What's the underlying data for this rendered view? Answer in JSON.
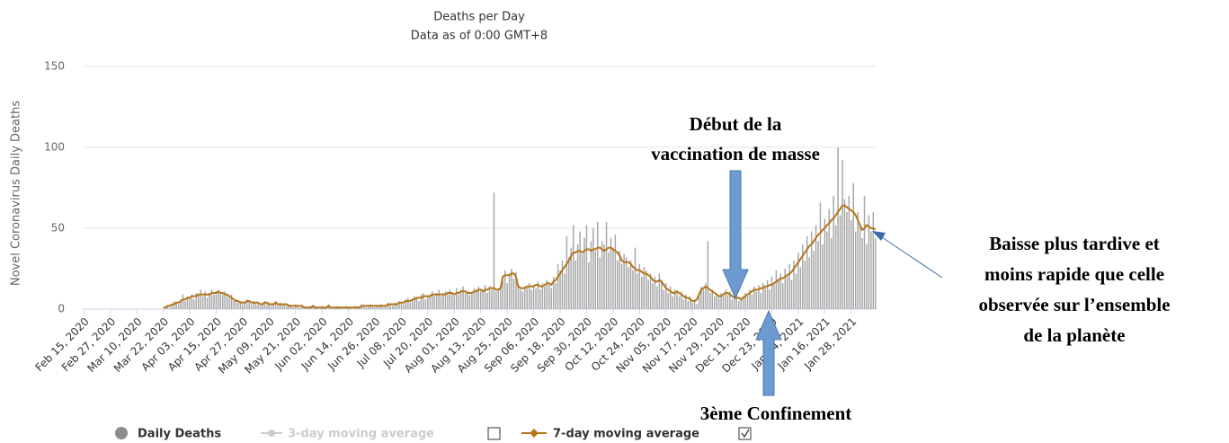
{
  "chart_data": {
    "type": "bar_line",
    "title": "Deaths per Day",
    "subtitle": "Data as of 0:00 GMT+8",
    "y_label": "Novel Coronavirus Daily Deaths",
    "ylim": [
      0,
      150
    ],
    "yticks": [
      0,
      50,
      100,
      150
    ],
    "grid": true,
    "categories": [
      "Feb 15, 2020",
      null,
      null,
      null,
      null,
      null,
      null,
      null,
      null,
      null,
      null,
      null,
      "Feb 27, 2020",
      null,
      null,
      null,
      null,
      null,
      null,
      null,
      null,
      null,
      null,
      null,
      "Mar 10, 2020",
      null,
      null,
      null,
      null,
      null,
      null,
      null,
      null,
      null,
      null,
      null,
      "Mar 22, 2020",
      null,
      null,
      null,
      null,
      null,
      null,
      null,
      null,
      null,
      null,
      null,
      "Apr 03, 2020",
      null,
      null,
      null,
      null,
      null,
      null,
      null,
      null,
      null,
      null,
      null,
      "Apr 15, 2020",
      null,
      null,
      null,
      null,
      null,
      null,
      null,
      null,
      null,
      null,
      null,
      "Apr 27, 2020",
      null,
      null,
      null,
      null,
      null,
      null,
      null,
      null,
      null,
      null,
      null,
      "May 09, 2020",
      null,
      null,
      null,
      null,
      null,
      null,
      null,
      null,
      null,
      null,
      null,
      "May 21, 2020",
      null,
      null,
      null,
      null,
      null,
      null,
      null,
      null,
      null,
      null,
      null,
      "Jun 02, 2020",
      null,
      null,
      null,
      null,
      null,
      null,
      null,
      null,
      null,
      null,
      null,
      "Jun 14, 2020",
      null,
      null,
      null,
      null,
      null,
      null,
      null,
      null,
      null,
      null,
      null,
      "Jun 26, 2020",
      null,
      null,
      null,
      null,
      null,
      null,
      null,
      null,
      null,
      null,
      null,
      "Jul 08, 2020",
      null,
      null,
      null,
      null,
      null,
      null,
      null,
      null,
      null,
      null,
      null,
      "Jul 20, 2020",
      null,
      null,
      null,
      null,
      null,
      null,
      null,
      null,
      null,
      null,
      null,
      "Aug 01, 2020",
      null,
      null,
      null,
      null,
      null,
      null,
      null,
      null,
      null,
      null,
      null,
      "Aug 13, 2020",
      null,
      null,
      null,
      null,
      null,
      null,
      null,
      null,
      null,
      null,
      null,
      "Aug 25, 2020",
      null,
      null,
      null,
      null,
      null,
      null,
      null,
      null,
      null,
      null,
      null,
      "Sep 06, 2020",
      null,
      null,
      null,
      null,
      null,
      null,
      null,
      null,
      null,
      null,
      null,
      "Sep 18, 2020",
      null,
      null,
      null,
      null,
      null,
      null,
      null,
      null,
      null,
      null,
      null,
      "Sep 30, 2020",
      null,
      null,
      null,
      null,
      null,
      null,
      null,
      null,
      null,
      null,
      null,
      "Oct 12, 2020",
      null,
      null,
      null,
      null,
      null,
      null,
      null,
      null,
      null,
      null,
      null,
      "Oct 24, 2020",
      null,
      null,
      null,
      null,
      null,
      null,
      null,
      null,
      null,
      null,
      null,
      "Nov 05, 2020",
      null,
      null,
      null,
      null,
      null,
      null,
      null,
      null,
      null,
      null,
      null,
      "Nov 17, 2020",
      null,
      null,
      null,
      null,
      null,
      null,
      null,
      null,
      null,
      null,
      null,
      "Nov 29, 2020",
      null,
      null,
      null,
      null,
      null,
      null,
      null,
      null,
      null,
      null,
      null,
      "Dec 11, 2020",
      null,
      null,
      null,
      null,
      null,
      null,
      null,
      null,
      null,
      null,
      null,
      "Dec 23, 2020",
      null,
      null,
      null,
      null,
      null,
      null,
      null,
      null,
      null,
      null,
      null,
      "Jan 04, 2021",
      null,
      null,
      null,
      null,
      null,
      null,
      null,
      null,
      null,
      null,
      null,
      "Jan 16, 2021",
      null,
      null,
      null,
      null,
      null,
      null,
      null,
      null,
      null,
      null,
      null,
      "Jan 28, 2021",
      null,
      null,
      null,
      null,
      null,
      null,
      null,
      null,
      null,
      null,
      null
    ],
    "series": [
      {
        "name": "Daily Deaths",
        "kind": "bar",
        "color": "#a6a6a6",
        "legend_color": "#8c8c8c",
        "values": [
          0,
          0,
          0,
          0,
          0,
          0,
          0,
          0,
          0,
          0,
          0,
          0,
          0,
          0,
          0,
          0,
          0,
          0,
          0,
          0,
          0,
          0,
          0,
          0,
          0,
          0,
          0,
          0,
          0,
          0,
          0,
          0,
          0,
          0,
          0,
          0,
          0,
          1,
          2,
          1,
          3,
          5,
          4,
          3,
          6,
          9,
          5,
          8,
          7,
          9,
          6,
          10,
          9,
          12,
          8,
          11,
          7,
          10,
          12,
          9,
          11,
          12,
          10,
          9,
          11,
          8,
          7,
          9,
          5,
          6,
          4,
          5,
          3,
          4,
          6,
          5,
          3,
          5,
          4,
          3,
          2,
          4,
          5,
          3,
          4,
          2,
          3,
          5,
          2,
          4,
          3,
          3,
          2,
          3,
          2,
          1,
          3,
          2,
          1,
          2,
          1,
          0,
          1,
          2,
          2,
          1,
          1,
          0,
          2,
          1,
          1,
          3,
          1,
          0,
          1,
          2,
          1,
          1,
          0,
          2,
          1,
          1,
          0,
          2,
          1,
          1,
          3,
          2,
          1,
          2,
          3,
          2,
          1,
          2,
          2,
          3,
          1,
          2,
          4,
          3,
          2,
          4,
          3,
          5,
          4,
          3,
          6,
          7,
          4,
          6,
          8,
          7,
          5,
          9,
          10,
          6,
          8,
          9,
          11,
          8,
          10,
          12,
          8,
          10,
          11,
          9,
          12,
          10,
          8,
          13,
          9,
          12,
          14,
          10,
          11,
          9,
          10,
          13,
          12,
          14,
          11,
          12,
          15,
          10,
          14,
          12,
          72,
          11,
          13,
          14,
          18,
          24,
          16,
          22,
          25,
          19,
          23,
          15,
          12,
          11,
          14,
          13,
          16,
          12,
          15,
          13,
          17,
          12,
          16,
          14,
          18,
          15,
          13,
          20,
          16,
          28,
          24,
          30,
          22,
          45,
          32,
          38,
          52,
          30,
          40,
          48,
          34,
          44,
          52,
          29,
          42,
          50,
          36,
          54,
          32,
          42,
          40,
          54,
          35,
          44,
          38,
          46,
          30,
          36,
          28,
          34,
          32,
          26,
          30,
          24,
          38,
          22,
          28,
          20,
          26,
          24,
          18,
          22,
          16,
          20,
          14,
          22,
          18,
          12,
          16,
          10,
          14,
          8,
          12,
          10,
          8,
          11,
          6,
          9,
          5,
          8,
          4,
          6,
          3,
          10,
          14,
          12,
          16,
          42,
          10,
          12,
          8,
          9,
          7,
          10,
          8,
          12,
          9,
          11,
          6,
          8,
          9,
          5,
          7,
          8,
          10,
          8,
          12,
          9,
          14,
          11,
          15,
          10,
          16,
          13,
          18,
          12,
          20,
          15,
          24,
          18,
          22,
          16,
          25,
          20,
          28,
          18,
          30,
          22,
          35,
          26,
          40,
          30,
          45,
          32,
          48,
          36,
          52,
          42,
          66,
          40,
          56,
          48,
          62,
          44,
          70,
          52,
          100,
          58,
          92,
          68,
          60,
          70,
          55,
          78,
          48,
          60,
          52,
          44,
          70,
          40,
          58,
          48,
          60,
          44
        ]
      },
      {
        "name": "7-day moving average",
        "kind": "line",
        "color": "#b5761b",
        "values": [
          null,
          null,
          null,
          null,
          null,
          null,
          null,
          null,
          null,
          null,
          null,
          null,
          null,
          null,
          null,
          null,
          null,
          null,
          null,
          null,
          null,
          null,
          null,
          null,
          null,
          null,
          null,
          null,
          null,
          null,
          null,
          null,
          null,
          null,
          null,
          null,
          1,
          1,
          2,
          2,
          3,
          3,
          4,
          4,
          5,
          6,
          6,
          7,
          7,
          8,
          8,
          8,
          9,
          9,
          9,
          9,
          9,
          9,
          10,
          10,
          10,
          11,
          10,
          10,
          9,
          9,
          8,
          7,
          6,
          5,
          5,
          4,
          4,
          4,
          5,
          5,
          4,
          4,
          4,
          4,
          3,
          3,
          4,
          4,
          3,
          3,
          3,
          4,
          3,
          3,
          3,
          3,
          3,
          2,
          2,
          2,
          2,
          2,
          2,
          2,
          1,
          1,
          1,
          1,
          2,
          1,
          1,
          1,
          1,
          1,
          1,
          2,
          1,
          1,
          1,
          1,
          1,
          1,
          1,
          1,
          1,
          1,
          1,
          1,
          1,
          1,
          2,
          2,
          2,
          2,
          2,
          2,
          2,
          2,
          2,
          2,
          2,
          2,
          3,
          3,
          3,
          3,
          3,
          4,
          4,
          4,
          5,
          5,
          5,
          6,
          6,
          7,
          7,
          7,
          8,
          8,
          8,
          8,
          9,
          9,
          9,
          9,
          9,
          9,
          9,
          10,
          10,
          10,
          9,
          10,
          10,
          11,
          11,
          11,
          10,
          10,
          10,
          11,
          11,
          12,
          12,
          11,
          12,
          12,
          13,
          13,
          13,
          12,
          12,
          13,
          20,
          21,
          21,
          21,
          22,
          22,
          20,
          14,
          13,
          13,
          13,
          14,
          14,
          14,
          14,
          15,
          15,
          14,
          14,
          15,
          16,
          16,
          15,
          17,
          18,
          20,
          22,
          24,
          26,
          28,
          30,
          33,
          35,
          35,
          36,
          36,
          35,
          36,
          37,
          37,
          36,
          37,
          37,
          38,
          38,
          37,
          36,
          37,
          38,
          38,
          37,
          36,
          35,
          33,
          30,
          29,
          29,
          29,
          28,
          26,
          25,
          24,
          24,
          23,
          22,
          22,
          21,
          20,
          18,
          17,
          17,
          18,
          17,
          15,
          13,
          12,
          11,
          10,
          10,
          11,
          10,
          9,
          8,
          7,
          7,
          6,
          5,
          5,
          6,
          9,
          12,
          13,
          14,
          13,
          12,
          11,
          10,
          9,
          8,
          8,
          9,
          10,
          10,
          9,
          8,
          7,
          7,
          7,
          6,
          7,
          8,
          9,
          10,
          11,
          12,
          12,
          12,
          13,
          13,
          14,
          14,
          15,
          15,
          16,
          17,
          18,
          19,
          19,
          20,
          21,
          22,
          23,
          25,
          27,
          29,
          31,
          33,
          35,
          37,
          39,
          40,
          42,
          44,
          46,
          47,
          49,
          50,
          52,
          53,
          55,
          56,
          58,
          60,
          62,
          64,
          64,
          63,
          62,
          61,
          60,
          58,
          55,
          52,
          49,
          50,
          52,
          51,
          50,
          50,
          49
        ]
      }
    ],
    "inactive_series": [
      {
        "name": "3-day moving average",
        "color": "#cccccc"
      }
    ],
    "annotations": [
      {
        "lines": [
          "Début de la",
          "vaccination de masse"
        ]
      },
      {
        "lines": [
          "3ème Confinement"
        ]
      },
      {
        "lines": [
          "Baisse plus tardive et",
          "moins rapide que celle",
          "observée sur l’ensemble",
          "de la planète"
        ]
      }
    ]
  }
}
